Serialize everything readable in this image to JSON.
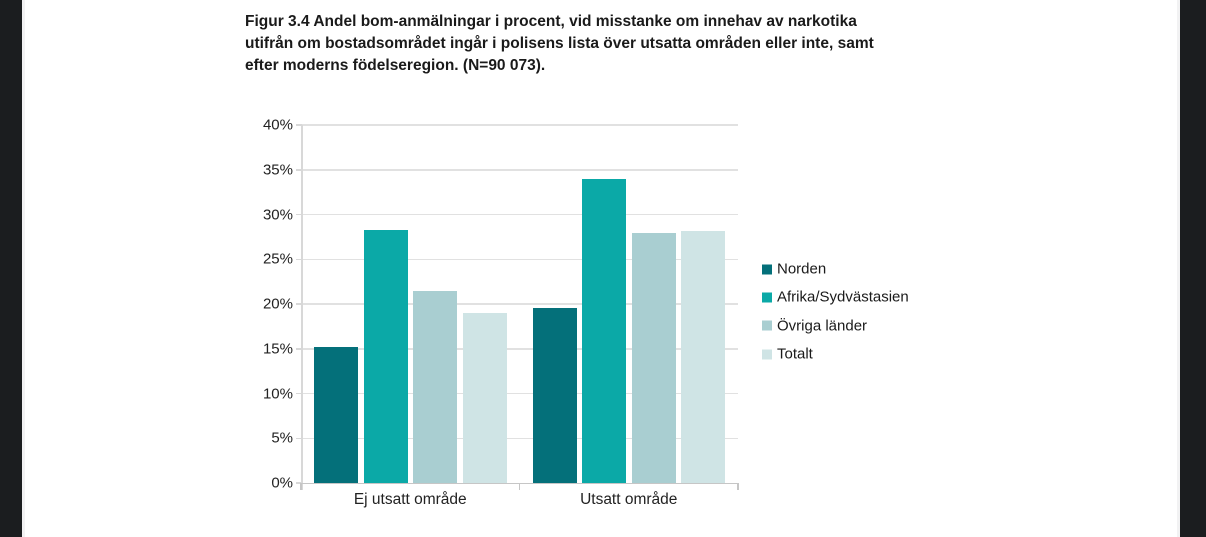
{
  "figure": {
    "title_lines": [
      "Figur 3.4 Andel bom-anmälningar i procent, vid misstanke om innehav av narkotika",
      "utifrån om bostadsområdet ingår i polisens lista över utsatta områden eller inte, samt",
      "efter moderns födelseregion. (N=90 073)."
    ]
  },
  "chart_data": {
    "type": "bar",
    "title": "Figur 3.4 Andel bom-anmälningar i procent, vid misstanke om innehav av narkotika utifrån om bostadsområdet ingår i polisens lista över utsatta områden eller inte, samt efter moderns födelseregion. (N=90 073).",
    "categories": [
      "Ej utsatt område",
      "Utsatt område"
    ],
    "series": [
      {
        "name": "Norden",
        "color": "#04707A",
        "values": [
          15.2,
          19.6
        ]
      },
      {
        "name": "Afrika/Sydvästasien",
        "color": "#0BA9A7",
        "values": [
          28.3,
          34.0
        ]
      },
      {
        "name": "Övriga länder",
        "color": "#A9CED1",
        "values": [
          21.4,
          27.9
        ]
      },
      {
        "name": "Totalt",
        "color": "#CFE4E5",
        "values": [
          19.0,
          28.2
        ]
      }
    ],
    "xlabel": "",
    "ylabel": "",
    "ylim": [
      0,
      40
    ],
    "ytick_step": 5,
    "ytick_labels": [
      "0%",
      "5%",
      "10%",
      "15%",
      "20%",
      "25%",
      "30%",
      "35%",
      "40%"
    ],
    "grid": true,
    "legend_position": "right"
  },
  "colors": {
    "surround": "#1B1D1F",
    "page_bg": "#FFFFFF",
    "gridline": "#E1E1E1",
    "axis": "#C6C6C6",
    "text": "#1A1A1A"
  }
}
